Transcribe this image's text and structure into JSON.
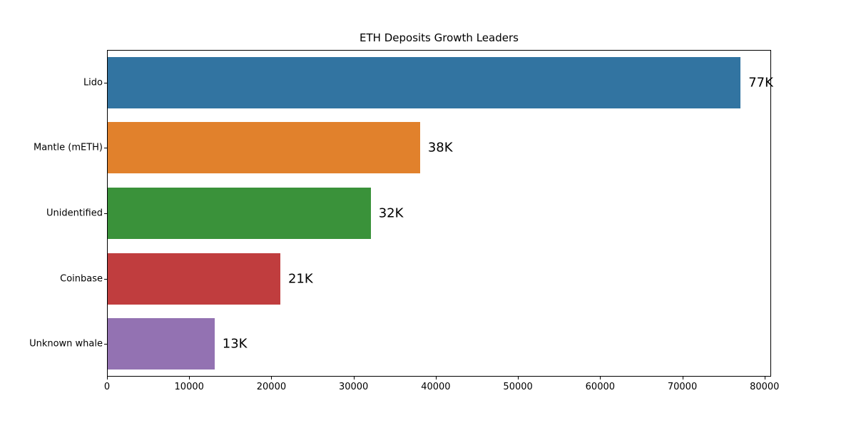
{
  "figure": {
    "background": "#ffffff"
  },
  "chart_data": {
    "type": "bar",
    "orientation": "horizontal",
    "title": "ETH Deposits Growth Leaders",
    "categories": [
      "Lido",
      "Mantle (mETH)",
      "Unidentified",
      "Coinbase",
      "Unknown whale"
    ],
    "values": [
      77000,
      38000,
      32000,
      21000,
      13000
    ],
    "bar_labels": [
      "77K",
      "38K",
      "32K",
      "21K",
      "13K"
    ],
    "bar_colors": [
      "#3274a1",
      "#e1812c",
      "#3a923a",
      "#c03d3e",
      "#9372b2"
    ],
    "xlabel": "",
    "ylabel": "",
    "xlim": [
      0,
      80800
    ],
    "x_ticks": [
      0,
      10000,
      20000,
      30000,
      40000,
      50000,
      60000,
      70000,
      80000
    ],
    "grid": false,
    "legend": "none",
    "axis_color": "#000000",
    "text_color": "#000000"
  }
}
